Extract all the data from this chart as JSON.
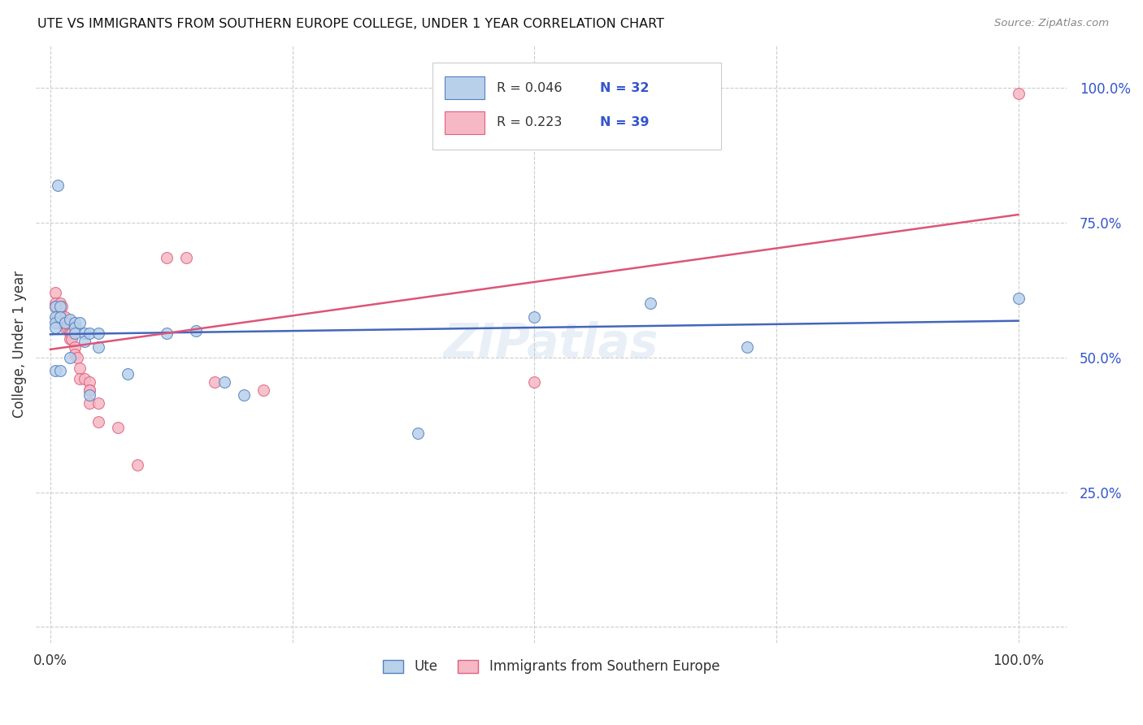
{
  "title": "UTE VS IMMIGRANTS FROM SOUTHERN EUROPE COLLEGE, UNDER 1 YEAR CORRELATION CHART",
  "source": "Source: ZipAtlas.com",
  "ylabel": "College, Under 1 year",
  "legend_r_blue": "R = 0.046",
  "legend_n_blue": "N = 32",
  "legend_r_pink": "R = 0.223",
  "legend_n_pink": "N = 39",
  "legend_label_blue": "Ute",
  "legend_label_pink": "Immigrants from Southern Europe",
  "blue_fill": "#b8d0ea",
  "pink_fill": "#f5b8c4",
  "blue_edge": "#5580c0",
  "pink_edge": "#e06080",
  "blue_line": "#4466bb",
  "pink_line": "#dd5577",
  "text_blue": "#3355cc",
  "text_dark": "#222222",
  "watermark": "ZIPatlas",
  "ute_x": [
    0.005,
    0.005,
    0.005,
    0.005,
    0.005,
    0.008,
    0.01,
    0.01,
    0.01,
    0.015,
    0.02,
    0.02,
    0.025,
    0.025,
    0.025,
    0.03,
    0.035,
    0.035,
    0.04,
    0.04,
    0.05,
    0.05,
    0.08,
    0.12,
    0.15,
    0.18,
    0.2,
    0.38,
    0.5,
    0.62,
    0.72,
    1.0
  ],
  "ute_y": [
    0.595,
    0.575,
    0.565,
    0.555,
    0.475,
    0.82,
    0.595,
    0.575,
    0.475,
    0.565,
    0.57,
    0.5,
    0.565,
    0.555,
    0.545,
    0.565,
    0.545,
    0.53,
    0.545,
    0.43,
    0.545,
    0.52,
    0.47,
    0.545,
    0.55,
    0.455,
    0.43,
    0.36,
    0.575,
    0.6,
    0.52,
    0.61
  ],
  "imm_x": [
    0.005,
    0.005,
    0.005,
    0.007,
    0.007,
    0.01,
    0.01,
    0.01,
    0.012,
    0.015,
    0.015,
    0.015,
    0.018,
    0.018,
    0.02,
    0.02,
    0.02,
    0.022,
    0.022,
    0.025,
    0.025,
    0.028,
    0.03,
    0.03,
    0.035,
    0.04,
    0.04,
    0.04,
    0.04,
    0.05,
    0.05,
    0.07,
    0.09,
    0.12,
    0.14,
    0.17,
    0.22,
    0.5,
    1.0
  ],
  "imm_y": [
    0.62,
    0.6,
    0.595,
    0.595,
    0.575,
    0.6,
    0.585,
    0.565,
    0.595,
    0.575,
    0.565,
    0.555,
    0.56,
    0.555,
    0.555,
    0.545,
    0.535,
    0.545,
    0.535,
    0.52,
    0.505,
    0.5,
    0.48,
    0.46,
    0.46,
    0.455,
    0.44,
    0.44,
    0.415,
    0.415,
    0.38,
    0.37,
    0.3,
    0.685,
    0.685,
    0.455,
    0.44,
    0.455,
    0.99
  ],
  "blue_trend_x": [
    0.0,
    1.0
  ],
  "blue_trend_y": [
    0.543,
    0.568
  ],
  "pink_trend_x": [
    0.0,
    1.0
  ],
  "pink_trend_y": [
    0.515,
    0.765
  ],
  "xlim": [
    -0.015,
    1.05
  ],
  "ylim": [
    -0.03,
    1.08
  ],
  "ytick_vals": [
    0.0,
    0.25,
    0.5,
    0.75,
    1.0
  ],
  "ytick_labels": [
    "",
    "25.0%",
    "50.0%",
    "75.0%",
    "100.0%"
  ],
  "xtick_vals": [
    0.0,
    0.25,
    0.5,
    0.75,
    1.0
  ],
  "xtick_labels": [
    "0.0%",
    "",
    "",
    "",
    "100.0%"
  ],
  "grid_color": "#cccccc",
  "marker_size": 100
}
